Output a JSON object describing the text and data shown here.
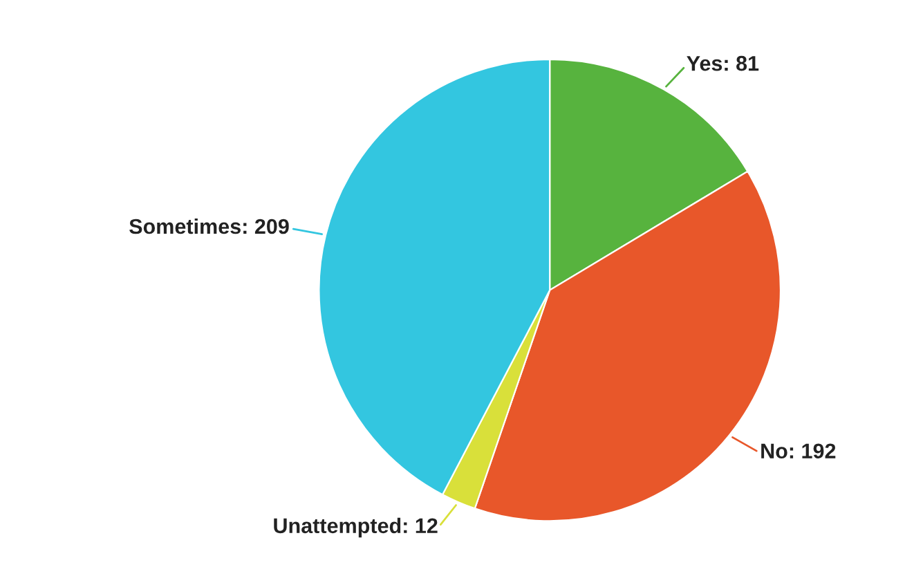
{
  "chart_data": {
    "type": "pie",
    "categories": [
      "Yes",
      "No",
      "Unattempted",
      "Sometimes"
    ],
    "values": [
      81,
      192,
      12,
      209
    ],
    "value_labels": [
      ": 81",
      ": 192",
      ": 12",
      ": 209"
    ],
    "colors": [
      "#57b33e",
      "#e8572a",
      "#d9e03a",
      "#33c6e0"
    ]
  }
}
